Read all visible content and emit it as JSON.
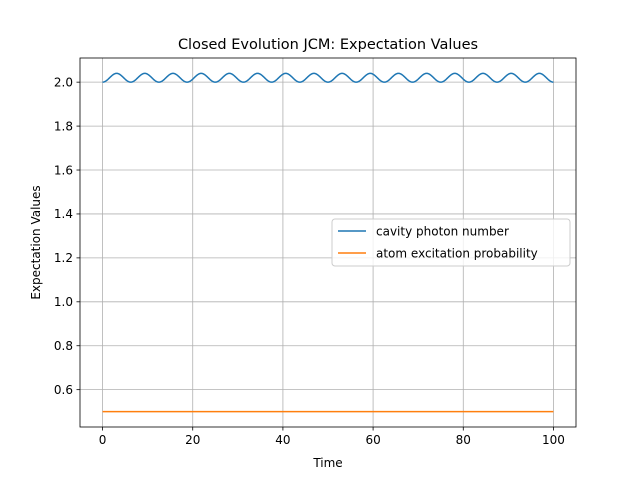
{
  "chart_data": {
    "type": "line",
    "title": "Closed Evolution JCM: Expectation Values",
    "xlabel": "Time",
    "ylabel": "Expectation Values",
    "xlim": [
      -5,
      105
    ],
    "ylim": [
      0.43,
      2.11
    ],
    "x_ticks": [
      0,
      20,
      40,
      60,
      80,
      100
    ],
    "y_ticks": [
      0.6,
      0.8,
      1.0,
      1.2,
      1.4,
      1.6,
      1.8,
      2.0
    ],
    "x_tick_labels": [
      "0",
      "20",
      "40",
      "60",
      "80",
      "100"
    ],
    "y_tick_labels": [
      "0.6",
      "0.8",
      "1.0",
      "1.2",
      "1.4",
      "1.6",
      "1.8",
      "2.0"
    ],
    "grid": true,
    "legend_position": "center-right",
    "series": [
      {
        "name": "cavity photon number",
        "color": "#1f77b4",
        "function": "oscillation",
        "baseline": 2.0,
        "amplitude": 0.04,
        "period": 6.25,
        "x_range": [
          0,
          100
        ]
      },
      {
        "name": "atom excitation probability",
        "color": "#ff7f0e",
        "function": "constant",
        "value": 0.5,
        "x_range": [
          0,
          100
        ]
      }
    ]
  }
}
